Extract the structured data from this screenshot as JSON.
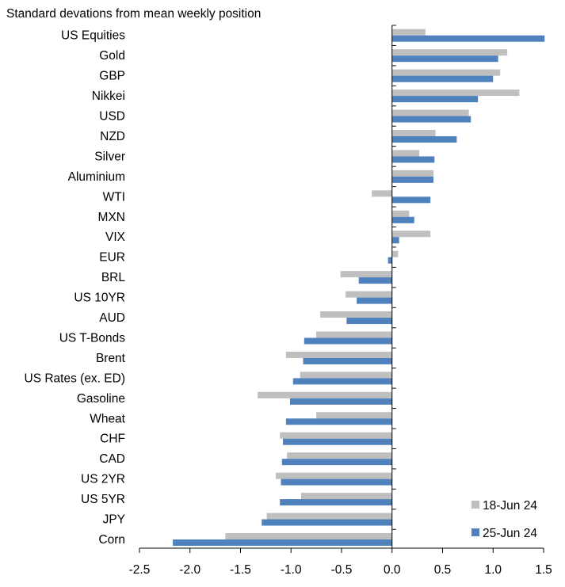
{
  "chart_data": {
    "type": "bar",
    "orientation": "horizontal",
    "title": "Standard devations from mean weekly position",
    "xlim": [
      -2.5,
      1.5
    ],
    "xticks": [
      "-2.5",
      "-2.0",
      "-1.5",
      "-1.0",
      "-0.5",
      "0.0",
      "0.5",
      "1.0",
      "1.5"
    ],
    "grid": false,
    "legend_position": "bottom-right",
    "categories": [
      "US Equities",
      "Gold",
      "GBP",
      "Nikkei",
      "USD",
      "NZD",
      "Silver",
      "Aluminium",
      "WTI",
      "MXN",
      "VIX",
      "EUR",
      "BRL",
      "US 10YR",
      "AUD",
      "US T-Bonds",
      "Brent",
      "US Rates (ex. ED)",
      "Gasoline",
      "Wheat",
      "CHF",
      "CAD",
      "US 2YR",
      "US 5YR",
      "JPY",
      "Corn"
    ],
    "series": [
      {
        "name": "18-Jun 24",
        "color": "#BFBFBF",
        "values": [
          0.33,
          1.14,
          1.07,
          1.26,
          0.76,
          0.43,
          0.27,
          0.41,
          -0.2,
          0.17,
          0.38,
          0.06,
          -0.51,
          -0.46,
          -0.71,
          -0.75,
          -1.05,
          -0.91,
          -1.33,
          -0.75,
          -1.11,
          -1.04,
          -1.15,
          -0.9,
          -1.24,
          -1.65
        ]
      },
      {
        "name": "25-Jun 24",
        "color": "#4F81BD",
        "values": [
          1.51,
          1.05,
          1.0,
          0.85,
          0.78,
          0.64,
          0.42,
          0.41,
          0.38,
          0.22,
          0.07,
          -0.04,
          -0.33,
          -0.35,
          -0.45,
          -0.87,
          -0.88,
          -0.98,
          -1.01,
          -1.05,
          -1.08,
          -1.09,
          -1.1,
          -1.11,
          -1.29,
          -2.17
        ]
      }
    ]
  }
}
